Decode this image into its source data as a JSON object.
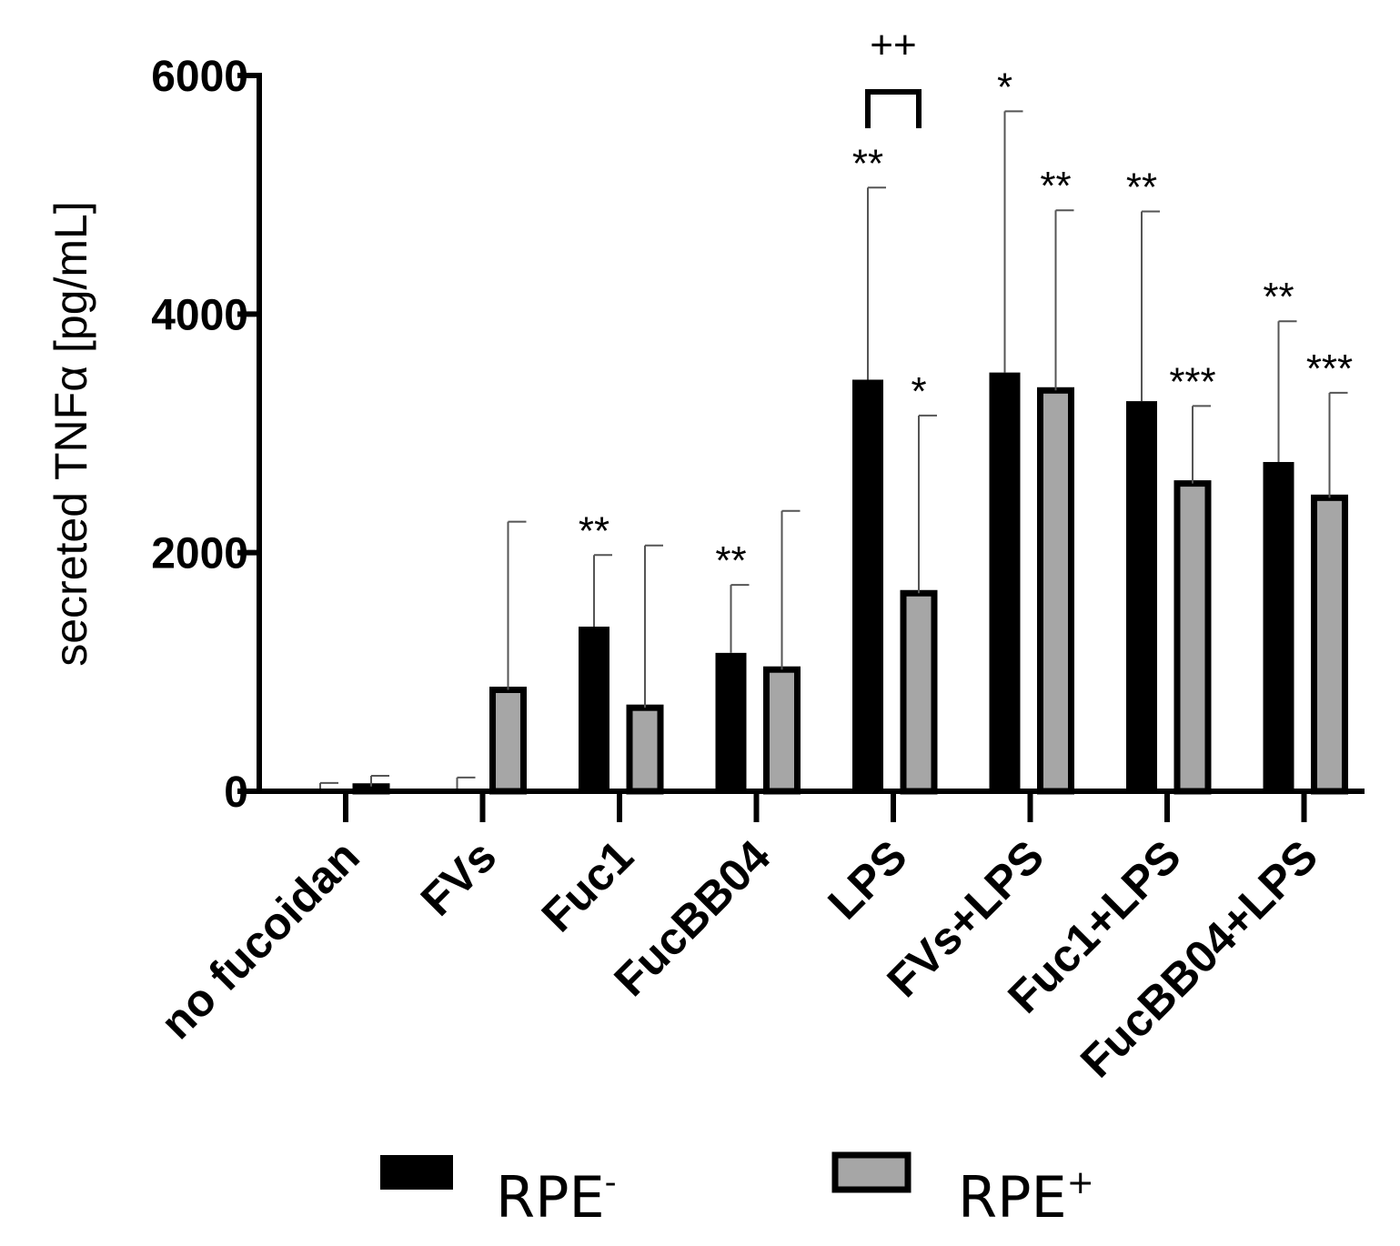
{
  "chart_data": {
    "type": "bar",
    "title": "",
    "xlabel": "",
    "ylabel": "secreted TNFα [pg/mL]",
    "ylim": [
      0,
      6000
    ],
    "yticks": [
      0,
      2000,
      4000,
      6000
    ],
    "categories": [
      "no fucoidan",
      "FVs",
      "Fuc1",
      "FucBB04",
      "LPS",
      "FVs+LPS",
      "Fuc1+LPS",
      "FucBB04+LPS"
    ],
    "series": [
      {
        "name": "RPE-",
        "legend_base": "RPE",
        "legend_sup": "-",
        "color": "#000000",
        "values": [
          10,
          5,
          1380,
          1160,
          3450,
          3510,
          3270,
          2760
        ],
        "errors": [
          60,
          110,
          600,
          570,
          1610,
          2190,
          1590,
          1180
        ],
        "significance": [
          "",
          "",
          "**",
          "**",
          "**",
          "*",
          "**",
          "**"
        ]
      },
      {
        "name": "RPE+",
        "legend_base": "RPE",
        "legend_sup": "+",
        "color": "#a6a6a6",
        "values": [
          40,
          850,
          700,
          1020,
          1660,
          3360,
          2580,
          2460
        ],
        "errors": [
          90,
          1410,
          1360,
          1330,
          1490,
          1510,
          650,
          880
        ],
        "significance": [
          "",
          "",
          "",
          "",
          "*",
          "**",
          "***",
          "***"
        ]
      }
    ],
    "bracket": {
      "category": "LPS",
      "label": "++"
    },
    "legend_position": "bottom"
  }
}
